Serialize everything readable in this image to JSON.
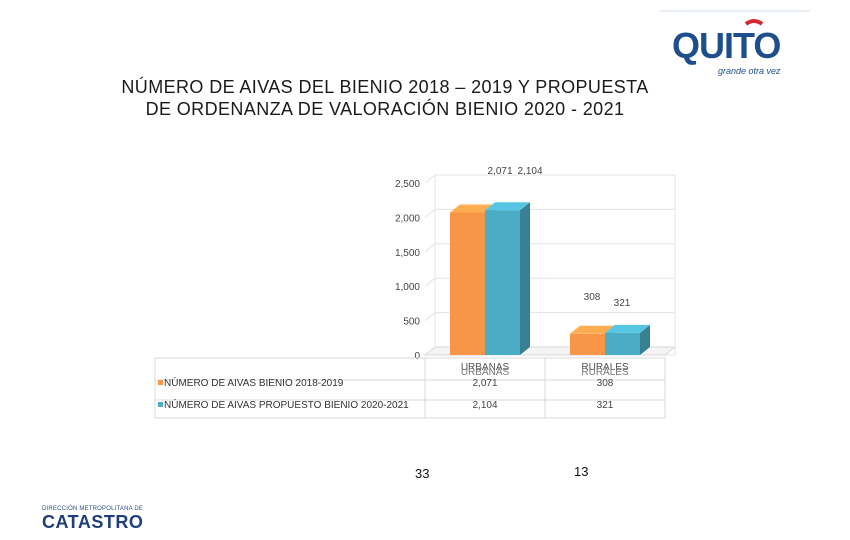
{
  "title_line1": "NÚMERO DE AIVAS DEL BIENIO 2018 – 2019 Y PROPUESTA",
  "title_line2": "DE ORDENANZA DE VALORACIÓN BIENIO 2020 - 2021",
  "logo": {
    "text": "QUITO",
    "tagline": "grande otra vez"
  },
  "brand": {
    "small": "DIRECCIÓN METROPOLITANA DE",
    "big": "CATASTRO"
  },
  "page_numbers": [
    "33",
    "13"
  ],
  "colors": {
    "series1": "#F79646",
    "series2": "#4BACC6",
    "logo_blue": "#1E4E8C",
    "logo_red": "#D7262F"
  },
  "chart_data": {
    "type": "bar",
    "title": "NÚMERO DE AIVAS DEL BIENIO 2018 – 2019 Y PROPUESTA DE ORDENANZA DE VALORACIÓN BIENIO 2020 - 2021",
    "categories": [
      "URBANAS",
      "RURALES"
    ],
    "series": [
      {
        "name": "NÚMERO DE AIVAS BIENIO 2018-2019",
        "values": [
          2071,
          308
        ],
        "labels": [
          "2,071",
          "308"
        ]
      },
      {
        "name": "NÚMERO DE AIVAS PROPUESTO BIENIO 2020-2021",
        "values": [
          2104,
          321
        ],
        "labels": [
          "2,104",
          "321"
        ]
      }
    ],
    "yticks": [
      "0",
      "500",
      "1,000",
      "1,500",
      "2,000",
      "2,500"
    ],
    "ylim": [
      0,
      2500
    ],
    "xlabel": "",
    "ylabel": "",
    "data_table": true
  }
}
